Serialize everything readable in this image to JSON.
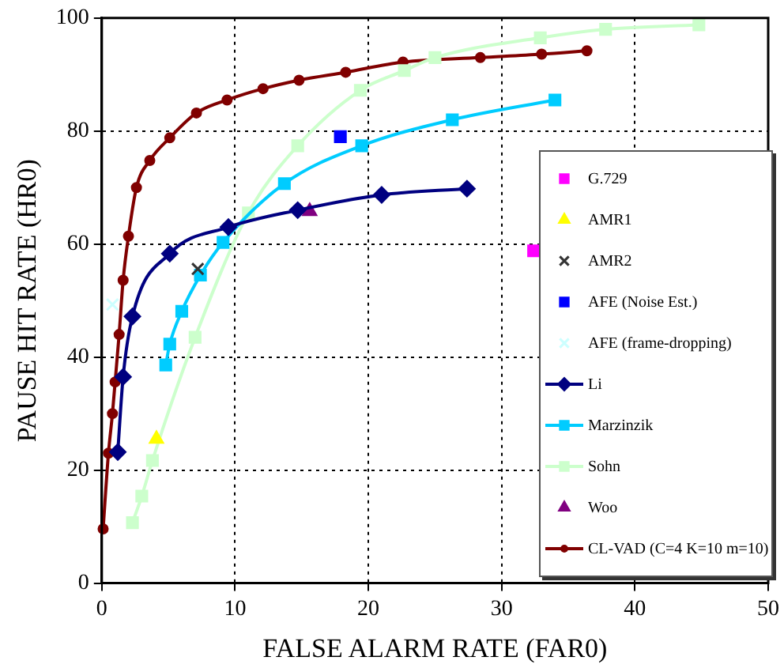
{
  "chart_data": {
    "type": "line",
    "xlabel": "FALSE ALARM RATE (FAR0)",
    "ylabel": "PAUSE HIT RATE (HR0)",
    "xlim": [
      0,
      50
    ],
    "xticks": [
      0,
      10,
      20,
      30,
      40,
      50
    ],
    "ylim": [
      0,
      100
    ],
    "yticks": [
      0,
      20,
      40,
      60,
      80,
      100
    ],
    "grid": true,
    "legend": "right",
    "line_style": "solid",
    "series": [
      {
        "name": "G.729",
        "type": "scatter",
        "marker": "square",
        "color": "#ff00ff",
        "x": [
          32.4
        ],
        "values": [
          58.8
        ]
      },
      {
        "name": "AMR1",
        "type": "scatter",
        "marker": "triangle",
        "color": "#ffff00",
        "x": [
          4.1
        ],
        "values": [
          25.5
        ]
      },
      {
        "name": "AMR2",
        "type": "scatter",
        "marker": "cross",
        "color": "#333333",
        "x": [
          7.2
        ],
        "values": [
          55.6
        ]
      },
      {
        "name": "AFE (Noise Est.)",
        "type": "scatter",
        "marker": "square",
        "color": "#0000ff",
        "x": [
          17.9
        ],
        "values": [
          79
        ]
      },
      {
        "name": "AFE (frame-dropping)",
        "type": "scatter",
        "marker": "cross",
        "color": "#ccffff",
        "x": [
          0.8
        ],
        "values": [
          49.3
        ]
      },
      {
        "name": "Li",
        "marker": "diamond",
        "color": "#000080",
        "x": [
          1.2,
          1.6,
          2.3,
          5.1,
          9.5,
          14.7,
          21.0,
          27.4
        ],
        "values": [
          23.2,
          36.5,
          47.2,
          58.3,
          63,
          66,
          68.7,
          69.8
        ]
      },
      {
        "name": "Marzinzik",
        "marker": "square",
        "color": "#00ccff",
        "x": [
          4.8,
          5.1,
          6.0,
          7.4,
          9.1,
          13.7,
          19.5,
          26.3,
          34.0
        ],
        "values": [
          38.6,
          42.3,
          48.1,
          54.5,
          60.3,
          70.7,
          77.4,
          82,
          85.5
        ]
      },
      {
        "name": "Sohn",
        "marker": "square",
        "color": "#ccffcc",
        "x": [
          2.3,
          3.0,
          3.8,
          7.0,
          11.0,
          14.7,
          19.4,
          22.7,
          25.0,
          32.9,
          37.8,
          44.8
        ],
        "values": [
          10.7,
          15.4,
          21.7,
          43.5,
          65.5,
          77.4,
          87.2,
          90.7,
          93,
          96.5,
          98,
          98.8
        ]
      },
      {
        "name": "Woo",
        "type": "scatter",
        "marker": "triangle",
        "color": "#800080",
        "x": [
          15.6
        ],
        "values": [
          65.8
        ]
      },
      {
        "name": "CL-VAD (C=4 K=10 m=10)",
        "marker": "circle",
        "color": "#800000",
        "x": [
          0.1,
          0.5,
          0.8,
          1.0,
          1.3,
          1.6,
          2.0,
          2.6,
          3.6,
          5.1,
          7.1,
          9.4,
          12.1,
          14.8,
          18.3,
          22.6,
          28.4,
          33.0,
          36.4
        ],
        "values": [
          9.6,
          23,
          30,
          35.6,
          44,
          53.6,
          61.4,
          70,
          74.8,
          78.8,
          83.2,
          85.5,
          87.5,
          89,
          90.4,
          92.2,
          93,
          93.6,
          94.2
        ]
      }
    ]
  }
}
